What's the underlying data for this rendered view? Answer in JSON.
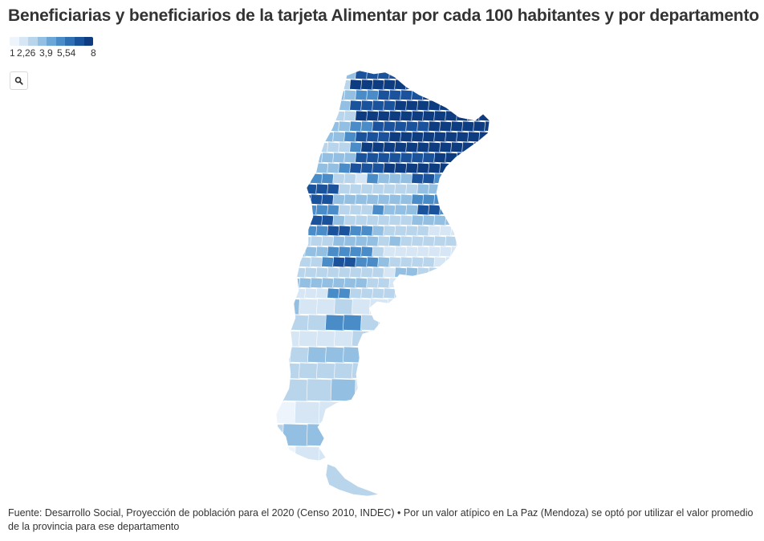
{
  "title": "Beneficiarias y beneficiarios de la tarjeta Alimentar por cada 100 habitantes y por departamento",
  "legend": {
    "labels": [
      "1",
      "2,26",
      "3,9",
      "5,54",
      "8"
    ],
    "stops": [
      1,
      2.26,
      3.9,
      5.54,
      8
    ],
    "colors": [
      "#eef4fb",
      "#d6e6f4",
      "#b9d5ec",
      "#93c0e2",
      "#6aa6d6",
      "#4a8cc8",
      "#2f6fb4",
      "#1b529c",
      "#0d3d80"
    ]
  },
  "zoom_button": {
    "icon": "search-icon"
  },
  "map": {
    "region": "Argentina",
    "unit": "departamento",
    "colors": {
      "lowest": "#eef4fb",
      "low": "#d6e6f4",
      "mid_low": "#b9d5ec",
      "mid": "#93c0e2",
      "mid_high": "#4a8cc8",
      "high": "#1b529c",
      "highest": "#0d3d80",
      "border": "#ffffff"
    }
  },
  "source": "Fuente: Desarrollo Social, Proyección de población para el 2020 (Censo 2010, INDEC) • Por un valor atípico en La Paz (Mendoza) se optó por utilizar el valor promedio de la provincia para ese departamento"
}
